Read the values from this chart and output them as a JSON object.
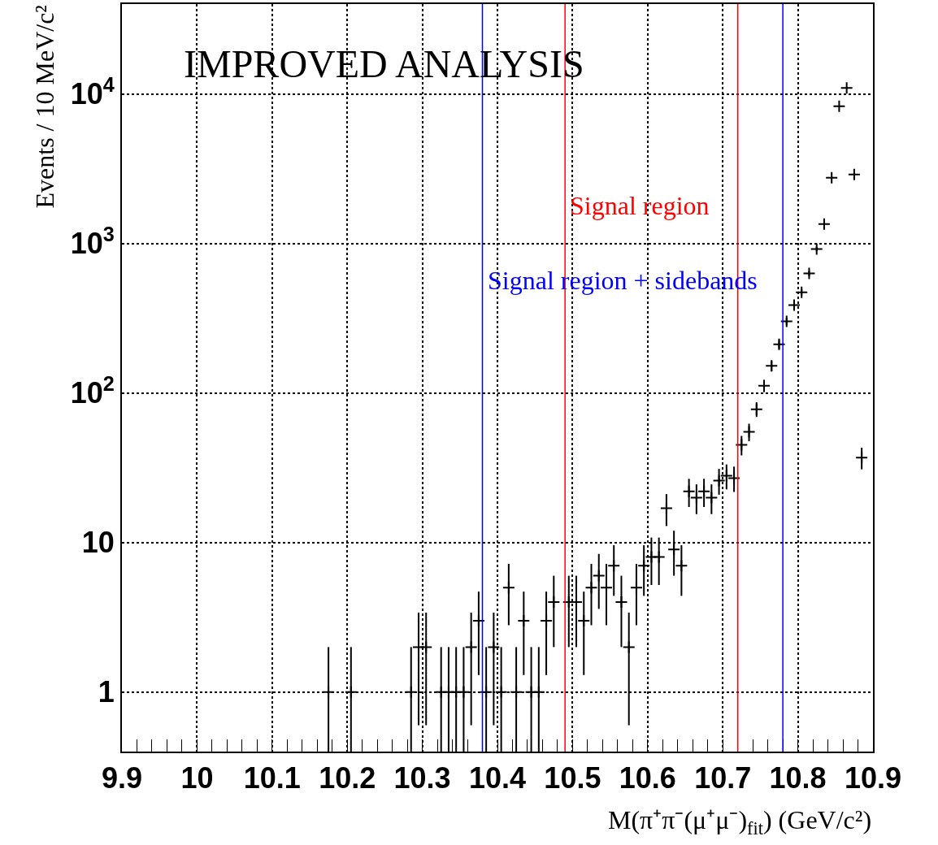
{
  "chart_data": {
    "type": "scatter",
    "title": "IMPROVED ANALYSIS",
    "xlabel": "M(π⁺π⁻(μ⁺μ⁻)$_{fit}$) (GeV/c²)",
    "ylabel": "Events / 10 MeV/c²",
    "x": [
      10.175,
      10.205,
      10.285,
      10.295,
      10.305,
      10.325,
      10.335,
      10.345,
      10.355,
      10.365,
      10.375,
      10.385,
      10.395,
      10.405,
      10.415,
      10.425,
      10.435,
      10.445,
      10.455,
      10.465,
      10.475,
      10.495,
      10.505,
      10.515,
      10.525,
      10.535,
      10.545,
      10.555,
      10.565,
      10.575,
      10.585,
      10.595,
      10.605,
      10.615,
      10.625,
      10.635,
      10.645,
      10.655,
      10.665,
      10.675,
      10.685,
      10.695,
      10.705,
      10.715,
      10.725,
      10.735,
      10.745,
      10.755,
      10.765,
      10.775,
      10.785,
      10.795,
      10.805,
      10.815,
      10.825,
      10.835,
      10.845,
      10.855,
      10.865,
      10.875,
      10.885
    ],
    "values": [
      1,
      1,
      1,
      2,
      2,
      1,
      1,
      1,
      1,
      2,
      3,
      1,
      2,
      1,
      5,
      1,
      3,
      1,
      1,
      3,
      4,
      4,
      4,
      3,
      5,
      6,
      5,
      7,
      4,
      2,
      5,
      7,
      8,
      8,
      17,
      9,
      7,
      22,
      20,
      22,
      20,
      26,
      28,
      27,
      45,
      55,
      78,
      112,
      152,
      212,
      302,
      388,
      472,
      631,
      920,
      1350,
      2760,
      8300,
      11000,
      2900,
      37
    ],
    "errors": [
      [
        0.4,
        2
      ],
      [
        0.4,
        2
      ],
      [
        0.4,
        2
      ],
      1.4,
      1.4,
      [
        0.4,
        2
      ],
      [
        0.4,
        2
      ],
      [
        0.4,
        2
      ],
      [
        0.4,
        2
      ],
      1.4,
      1.7,
      [
        0.4,
        2
      ],
      1.4,
      [
        0.4,
        2
      ],
      2.2,
      [
        0.4,
        2
      ],
      1.7,
      [
        0.4,
        2
      ],
      [
        0.4,
        2
      ],
      1.7,
      2,
      2,
      2,
      1.7,
      2.2,
      2.4,
      2.2,
      2.6,
      2,
      1.4,
      2.2,
      2.6,
      2.8,
      2.8,
      4.1,
      3,
      2.6,
      4.7,
      4.5,
      4.7,
      4.5,
      5.1,
      5.3,
      5.2,
      6.7,
      7.4,
      8.8,
      10.6,
      12.3,
      14.6,
      17.4,
      19.7,
      21.7,
      25.1,
      30.3,
      36.7,
      52.5,
      91,
      105,
      54,
      6.1
    ],
    "color": "#000000",
    "marker": "cross",
    "log": "y",
    "grid": true,
    "xlim": [
      9.9,
      10.9
    ],
    "xticks": [
      9.9,
      10,
      10.1,
      10.2,
      10.3,
      10.4,
      10.5,
      10.6,
      10.7,
      10.8,
      10.9
    ],
    "ylim": [
      0.4,
      40000
    ],
    "yticks": [
      1,
      10,
      {
        "value": 100,
        "label": "10$^{2}$"
      },
      {
        "value": 1000,
        "label": "10$^{3}$"
      },
      {
        "value": 10000,
        "label": "10$^{4}$"
      }
    ],
    "ref_lines": [
      {
        "axis": "x",
        "value": 10.38,
        "color": "#0000ff",
        "label": "Signal region + sidebands"
      },
      {
        "axis": "x",
        "value": 10.49,
        "color": "#ff0000",
        "label": "Signal region"
      },
      {
        "axis": "x",
        "value": 10.72,
        "color": "#ff0000",
        "label": null
      },
      {
        "axis": "x",
        "value": 10.78,
        "color": "#0000ff",
        "label": null
      }
    ]
  }
}
